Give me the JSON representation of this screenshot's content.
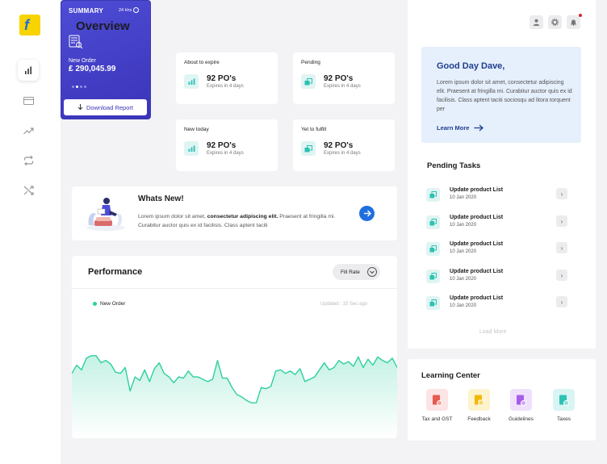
{
  "sidebar": {
    "logo_letter": "f",
    "items": [
      {
        "icon": "bar-chart-icon",
        "active": true
      },
      {
        "icon": "card-icon",
        "active": false
      },
      {
        "icon": "trending-icon",
        "active": false
      },
      {
        "icon": "repeat-icon",
        "active": false
      },
      {
        "icon": "shuffle-icon",
        "active": false
      }
    ]
  },
  "header": {
    "title": "Overview"
  },
  "summary": {
    "title": "SUMMARY",
    "range": "24 Hrs",
    "order_label": "New Order",
    "order_value": "₤ 290,045.99",
    "download_label": "Download Report"
  },
  "po_cards": [
    {
      "label": "About to expire",
      "value": "92 PO's",
      "sub": "Expires in 4 days"
    },
    {
      "label": "Pending",
      "value": "92 PO's",
      "sub": "Expires in 4 days"
    },
    {
      "label": "New today",
      "value": "92 PO's",
      "sub": "Expires in 4 days"
    },
    {
      "label": "Yet to fulfill",
      "value": "92 PO's",
      "sub": "Expires in 4 days"
    }
  ],
  "whats_new": {
    "title": "Whats New!",
    "text_before": "Lorem ipsum dolor sit amet, ",
    "text_bold": "consectetur adipiscing elit.",
    "text_after": " Praesent at fringilla mi. Curabitur auctor quis ex id facilisis. Class aptent taciti"
  },
  "performance": {
    "title": "Performance",
    "filter_value": "Fill Rate",
    "legend": "New Order",
    "updated": "Updated : 15 Sec ago"
  },
  "chart_data": {
    "type": "area",
    "series": [
      {
        "name": "New Order",
        "values": [
          55,
          62,
          58,
          68,
          70,
          70,
          64,
          66,
          63,
          56,
          55,
          60,
          40,
          52,
          49,
          58,
          48,
          59,
          64,
          55,
          52,
          47,
          52,
          51,
          57,
          52,
          52,
          50,
          48,
          50,
          66,
          51,
          51,
          43,
          37,
          35,
          32,
          30,
          30,
          43,
          42,
          44,
          57,
          58,
          55,
          57,
          54,
          59,
          48,
          50,
          52,
          58,
          64,
          58,
          60,
          66,
          63,
          65,
          61,
          69,
          60,
          67,
          62,
          69,
          66,
          64,
          68,
          60
        ]
      }
    ],
    "ylim": [
      0,
      100
    ],
    "color": "#2ecf9e"
  },
  "greeting": {
    "title": "Good Day Dave,",
    "text": "Lorem ipsum dolor sit amet, consectetur adipiscing elit. Praesent at fringilla mi. Curabitur auctor quis ex id facilisis. Class aptent taciti sociosqu ad litora torquent per",
    "link": "Learn More"
  },
  "pending_tasks": {
    "title": "Pending Tasks",
    "items": [
      {
        "name": "Update product List",
        "date": "10 Jan 2020"
      },
      {
        "name": "Update product List",
        "date": "10 Jan 2020"
      },
      {
        "name": "Update product List",
        "date": "10 Jan 2020"
      },
      {
        "name": "Update product List",
        "date": "10 Jan 2020"
      },
      {
        "name": "Update product List",
        "date": "10 Jan 2020"
      }
    ],
    "load_more": "Load More"
  },
  "learning_center": {
    "title": "Learning Center",
    "items": [
      {
        "label": "Tax and GST",
        "icon": "tax-doc-icon",
        "bg": "#fde4e4",
        "fg": "#e8594f"
      },
      {
        "label": "Feedback",
        "icon": "feedback-doc-icon",
        "bg": "#fdf3cc",
        "fg": "#f2b705"
      },
      {
        "label": "Guidelines",
        "icon": "guidelines-doc-icon",
        "bg": "#efe1fb",
        "fg": "#a65ee8"
      },
      {
        "label": "Taxes",
        "icon": "taxes-doc-icon",
        "bg": "#d9f5f3",
        "fg": "#2cc1b3"
      }
    ]
  },
  "colors": {
    "accent": "#1f6fe0",
    "summary_bg": "#4e4cd6",
    "teal": "#2ecf9e"
  }
}
